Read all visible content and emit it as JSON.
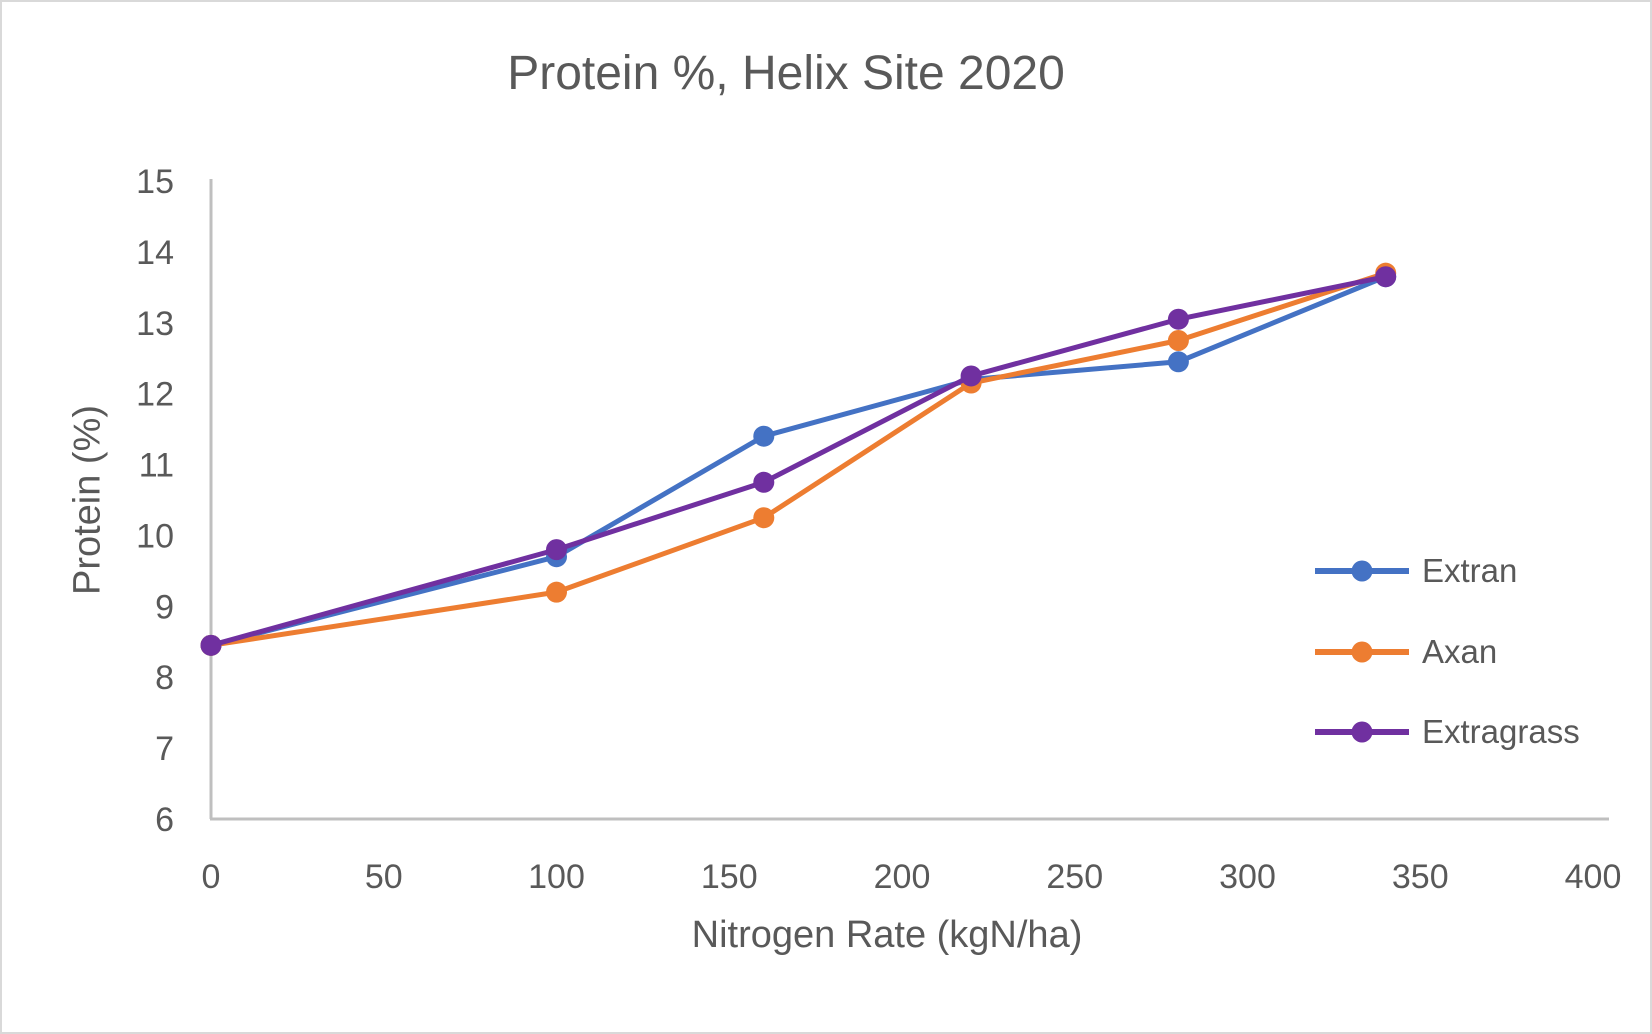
{
  "chart_data": {
    "type": "line",
    "title": "Protein %, Helix Site 2020",
    "xlabel": "Nitrogen Rate (kgN/ha)",
    "ylabel": "Protein (%)",
    "x": [
      0,
      100,
      160,
      220,
      280,
      340
    ],
    "x_ticks": [
      0,
      50,
      100,
      150,
      200,
      250,
      300,
      350,
      400
    ],
    "y_ticks": [
      6,
      7,
      8,
      9,
      10,
      11,
      12,
      13,
      14,
      15
    ],
    "xlim": [
      0,
      400
    ],
    "ylim": [
      6,
      15
    ],
    "grid": false,
    "marker": "circle",
    "legend_position": "right",
    "legend_entries": [
      "Extran",
      "Axan",
      "Extragrass"
    ],
    "series": [
      {
        "name": "Extran",
        "color": "#4472C4",
        "values": [
          8.45,
          9.7,
          11.4,
          12.2,
          12.45,
          13.65
        ]
      },
      {
        "name": "Axan",
        "color": "#ED7D31",
        "values": [
          8.45,
          9.2,
          10.25,
          12.15,
          12.75,
          13.7
        ]
      },
      {
        "name": "Extragrass",
        "color": "#7030A0",
        "values": [
          8.45,
          9.8,
          10.75,
          12.25,
          13.05,
          13.65
        ]
      }
    ],
    "text_color": "#595959",
    "axis_color": "#BFBFBF"
  }
}
